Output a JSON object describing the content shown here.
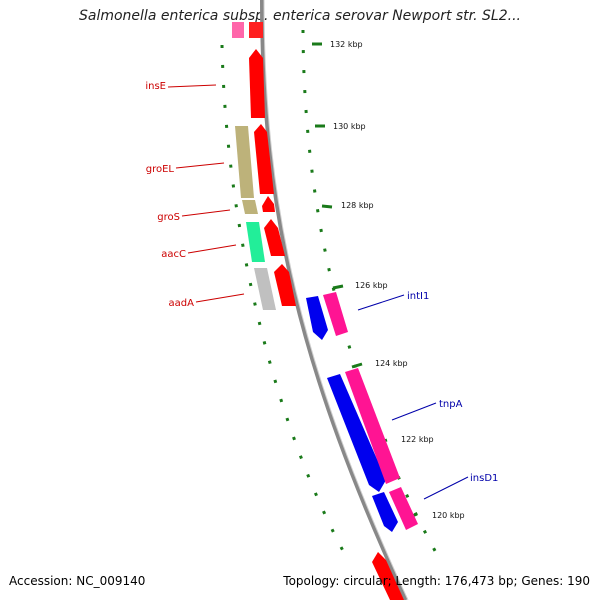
{
  "title": "Salmonella enterica subsp. enterica serovar Newport str. SL2...",
  "footer": {
    "accession": "Accession: NC_009140",
    "summary": "Topology: circular; Length: 176,473 bp; Genes: 190"
  },
  "colors": {
    "backbone": "#888888",
    "tick": "#1a7a1a",
    "label_forward": "#cc0000",
    "label_reverse": "#0000aa"
  },
  "ticks": [
    {
      "label": "132 kbp"
    },
    {
      "label": "130 kbp"
    },
    {
      "label": "128 kbp"
    },
    {
      "label": "126 kbp"
    },
    {
      "label": "124 kbp"
    },
    {
      "label": "122 kbp"
    },
    {
      "label": "120 kbp"
    }
  ],
  "features": [
    {
      "name": "insE",
      "color": "#ff0000"
    },
    {
      "name": "groEL",
      "color": "#ff0000"
    },
    {
      "name": "groS",
      "color": "#ff0000"
    },
    {
      "name": "aacC",
      "color": "#ff0000"
    },
    {
      "name": "aadA",
      "color": "#ff0000"
    },
    {
      "name": "intI1",
      "color": "#ff1493"
    },
    {
      "name": "tnpA",
      "color": "#ff1493"
    },
    {
      "name": "insD1",
      "color": "#ff1493"
    }
  ]
}
